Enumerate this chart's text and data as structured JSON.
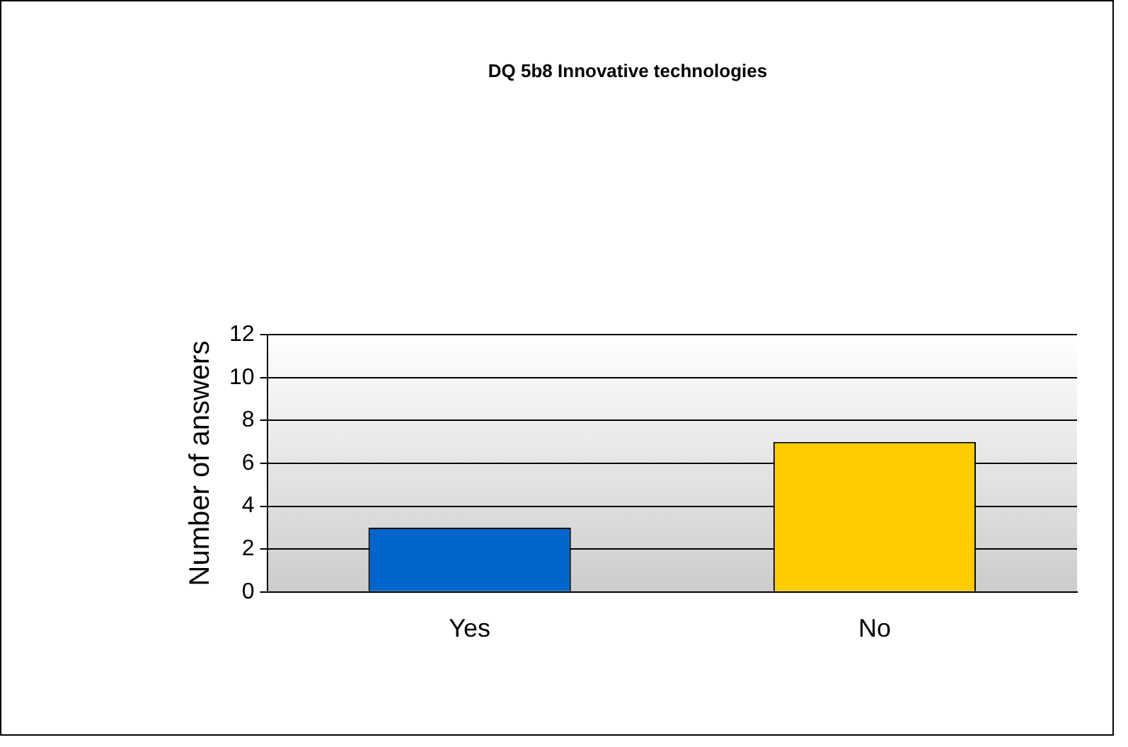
{
  "chart_data": {
    "type": "bar",
    "title": "DQ 5b8 Innovative technologies",
    "ylabel": "Number of answers",
    "categories": [
      "Yes",
      "No"
    ],
    "values": [
      3,
      7
    ],
    "colors": [
      "#0066cc",
      "#ffcc00"
    ],
    "ylim": [
      0,
      12
    ],
    "yticks": [
      0,
      2,
      4,
      6,
      8,
      10,
      12
    ],
    "grid": "y",
    "legend": false
  }
}
